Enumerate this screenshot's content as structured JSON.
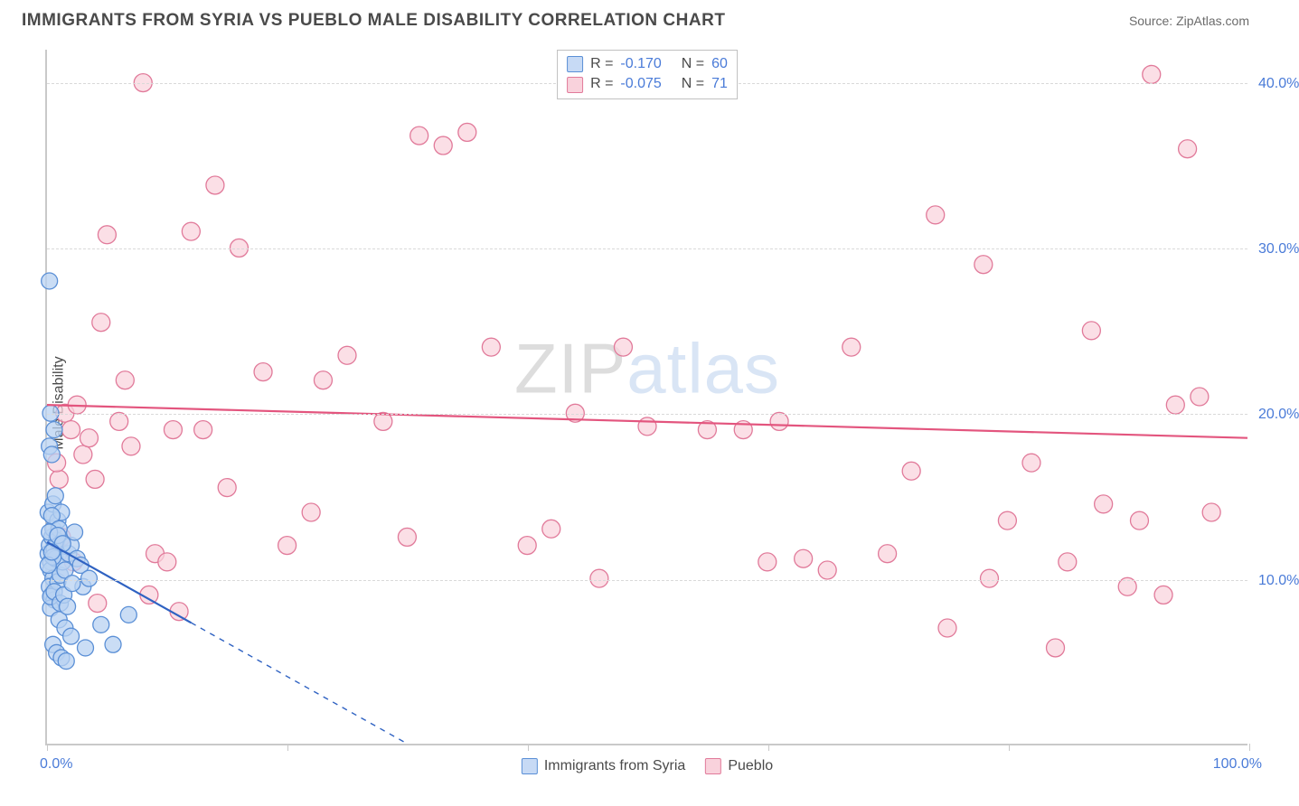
{
  "header": {
    "title": "IMMIGRANTS FROM SYRIA VS PUEBLO MALE DISABILITY CORRELATION CHART",
    "source_label": "Source: ZipAtlas.com"
  },
  "watermark": {
    "part1": "ZIP",
    "part2": "atlas"
  },
  "ylabel": "Male Disability",
  "axes": {
    "xlim": [
      0,
      100
    ],
    "ylim": [
      0,
      42
    ],
    "ytick_values": [
      10,
      20,
      30,
      40
    ],
    "ytick_labels": [
      "10.0%",
      "20.0%",
      "30.0%",
      "40.0%"
    ],
    "xtick_values": [
      0,
      20,
      40,
      60,
      80,
      100
    ],
    "x0_label": "0.0%",
    "x100_label": "100.0%"
  },
  "series": {
    "syria": {
      "label": "Immigrants from Syria",
      "R_label": "R =",
      "N_label": "N =",
      "R": "-0.170",
      "N": "60",
      "marker_fill": "#b8d1f2",
      "marker_stroke": "#5a8fd6",
      "marker_opacity": 0.75,
      "marker_radius": 9,
      "line_color": "#2f62c2",
      "line_width": 2.2,
      "swatch_fill": "#c7daf5",
      "swatch_border": "#5a8fd6",
      "trend": {
        "x1": 0,
        "y1": 12.2,
        "x2": 30,
        "y2": 0,
        "solid_to_x": 12
      },
      "points": [
        [
          0.1,
          11.5
        ],
        [
          0.2,
          12.0
        ],
        [
          0.3,
          11.0
        ],
        [
          0.4,
          12.5
        ],
        [
          0.5,
          13.0
        ],
        [
          0.6,
          11.8
        ],
        [
          0.8,
          12.3
        ],
        [
          0.3,
          10.5
        ],
        [
          0.5,
          10.0
        ],
        [
          0.7,
          11.2
        ],
        [
          0.2,
          9.5
        ],
        [
          0.4,
          9.0
        ],
        [
          0.6,
          8.7
        ],
        [
          0.3,
          8.2
        ],
        [
          0.9,
          9.8
        ],
        [
          1.1,
          10.2
        ],
        [
          1.3,
          11.0
        ],
        [
          1.5,
          10.5
        ],
        [
          1.8,
          11.5
        ],
        [
          2.0,
          12.0
        ],
        [
          2.3,
          12.8
        ],
        [
          2.5,
          11.2
        ],
        [
          2.8,
          10.8
        ],
        [
          3.0,
          9.5
        ],
        [
          3.5,
          10.0
        ],
        [
          1.0,
          7.5
        ],
        [
          1.5,
          7.0
        ],
        [
          2.0,
          6.5
        ],
        [
          0.5,
          6.0
        ],
        [
          0.8,
          5.5
        ],
        [
          1.2,
          5.2
        ],
        [
          1.6,
          5.0
        ],
        [
          3.2,
          5.8
        ],
        [
          4.5,
          7.2
        ],
        [
          5.5,
          6.0
        ],
        [
          6.8,
          7.8
        ],
        [
          0.2,
          18.0
        ],
        [
          0.4,
          17.5
        ],
        [
          0.6,
          19.0
        ],
        [
          0.3,
          20.0
        ],
        [
          0.1,
          14.0
        ],
        [
          0.5,
          14.5
        ],
        [
          0.9,
          13.5
        ],
        [
          1.2,
          14.0
        ],
        [
          0.2,
          28.0
        ],
        [
          0.4,
          13.8
        ],
        [
          0.7,
          15.0
        ],
        [
          1.0,
          13.0
        ],
        [
          0.3,
          8.9
        ],
        [
          0.6,
          9.2
        ],
        [
          1.1,
          8.5
        ],
        [
          1.4,
          9.0
        ],
        [
          1.7,
          8.3
        ],
        [
          2.1,
          9.7
        ],
        [
          0.2,
          12.8
        ],
        [
          0.5,
          11.3
        ],
        [
          0.9,
          12.6
        ],
        [
          1.3,
          12.1
        ],
        [
          0.1,
          10.8
        ],
        [
          0.4,
          11.6
        ]
      ]
    },
    "pueblo": {
      "label": "Pueblo",
      "R_label": "R =",
      "N_label": "N =",
      "R": "-0.075",
      "N": "71",
      "marker_fill": "#f9d2dc",
      "marker_stroke": "#e17a9a",
      "marker_opacity": 0.72,
      "marker_radius": 10,
      "line_color": "#e3557e",
      "line_width": 2.2,
      "swatch_fill": "#f9d2dc",
      "swatch_border": "#e17a9a",
      "trend": {
        "x1": 0,
        "y1": 20.5,
        "x2": 100,
        "y2": 18.5
      },
      "points": [
        [
          1.5,
          20.0
        ],
        [
          2.0,
          19.0
        ],
        [
          2.5,
          20.5
        ],
        [
          3.0,
          17.5
        ],
        [
          3.5,
          18.5
        ],
        [
          4.0,
          16.0
        ],
        [
          4.5,
          25.5
        ],
        [
          5.0,
          30.8
        ],
        [
          6.0,
          19.5
        ],
        [
          7.0,
          18.0
        ],
        [
          8.0,
          40.0
        ],
        [
          9.0,
          11.5
        ],
        [
          10.0,
          11.0
        ],
        [
          12.0,
          31.0
        ],
        [
          13.0,
          19.0
        ],
        [
          14.0,
          33.8
        ],
        [
          15.0,
          15.5
        ],
        [
          16.0,
          30.0
        ],
        [
          18.0,
          22.5
        ],
        [
          20.0,
          12.0
        ],
        [
          22.0,
          14.0
        ],
        [
          23.0,
          22.0
        ],
        [
          25.0,
          23.5
        ],
        [
          28.0,
          19.5
        ],
        [
          30.0,
          12.5
        ],
        [
          31.0,
          36.8
        ],
        [
          33.0,
          36.2
        ],
        [
          35.0,
          37.0
        ],
        [
          37.0,
          24.0
        ],
        [
          40.0,
          12.0
        ],
        [
          42.0,
          13.0
        ],
        [
          44.0,
          20.0
        ],
        [
          46.0,
          10.0
        ],
        [
          48.0,
          24.0
        ],
        [
          50.0,
          19.2
        ],
        [
          55.0,
          19.0
        ],
        [
          58.0,
          19.0
        ],
        [
          60.0,
          11.0
        ],
        [
          61.0,
          19.5
        ],
        [
          63.0,
          11.2
        ],
        [
          65.0,
          10.5
        ],
        [
          67.0,
          24.0
        ],
        [
          70.0,
          11.5
        ],
        [
          72.0,
          16.5
        ],
        [
          74.0,
          32.0
        ],
        [
          75.0,
          7.0
        ],
        [
          78.0,
          29.0
        ],
        [
          80.0,
          13.5
        ],
        [
          82.0,
          17.0
        ],
        [
          84.0,
          5.8
        ],
        [
          85.0,
          11.0
        ],
        [
          87.0,
          25.0
        ],
        [
          88.0,
          14.5
        ],
        [
          90.0,
          9.5
        ],
        [
          91.0,
          13.5
        ],
        [
          92.0,
          40.5
        ],
        [
          93.0,
          9.0
        ],
        [
          94.0,
          20.5
        ],
        [
          95.0,
          36.0
        ],
        [
          96.0,
          21.0
        ],
        [
          97.0,
          14.0
        ],
        [
          4.2,
          8.5
        ],
        [
          6.5,
          22.0
        ],
        [
          11.0,
          8.0
        ],
        [
          2.2,
          11.0
        ],
        [
          1.0,
          16.0
        ],
        [
          1.2,
          12.5
        ],
        [
          0.8,
          17.0
        ],
        [
          10.5,
          19.0
        ],
        [
          8.5,
          9.0
        ],
        [
          78.5,
          10.0
        ]
      ]
    }
  },
  "colors": {
    "tick_text": "#4a7bd8",
    "title_text": "#4a4a4a",
    "grid": "#d9d9d9",
    "axis": "#c9c9c9",
    "background": "#ffffff"
  }
}
